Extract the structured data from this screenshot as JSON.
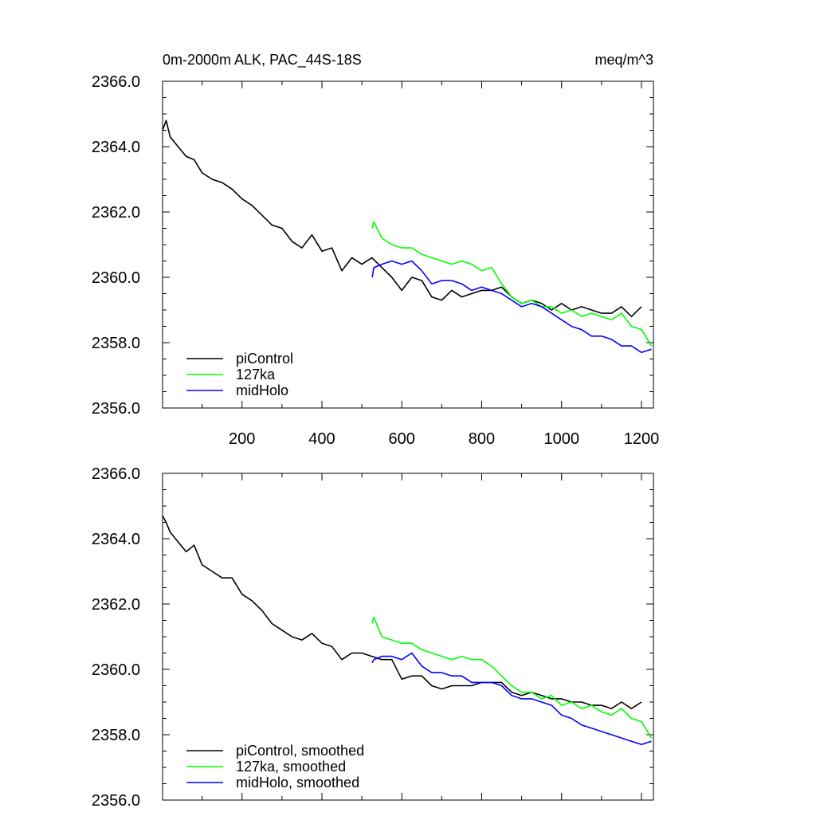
{
  "figure": {
    "title_left": "0m-2000m ALK, PAC_44S-18S",
    "title_right": "meq/m^3"
  },
  "chart_data": [
    {
      "type": "line",
      "title": "0m-2000m ALK, PAC_44S-18S",
      "units": "meq/m^3",
      "xlabel": "",
      "ylabel": "",
      "xlim": [
        1,
        1230
      ],
      "ylim": [
        2356.0,
        2366.0
      ],
      "xticks": [
        200,
        400,
        600,
        800,
        1000,
        1200
      ],
      "xtick_labels": [
        "200",
        "400",
        "600",
        "800",
        "1000",
        "1200"
      ],
      "yticks": [
        2356,
        2358,
        2360,
        2362,
        2364,
        2366
      ],
      "ytick_labels": [
        "2356.0",
        "2358.0",
        "2360.0",
        "2362.0",
        "2364.0",
        "2366.0"
      ],
      "legend_location": "bottom-left",
      "series": [
        {
          "name": "piControl",
          "color": "#000000",
          "x": [
            1,
            10,
            20,
            40,
            60,
            80,
            100,
            125,
            150,
            175,
            200,
            225,
            250,
            275,
            300,
            325,
            350,
            375,
            400,
            425,
            450,
            475,
            500,
            525,
            550,
            575,
            600,
            625,
            650,
            675,
            700,
            725,
            750,
            775,
            800,
            825,
            850,
            875,
            900,
            925,
            950,
            975,
            1000,
            1025,
            1050,
            1075,
            1100,
            1125,
            1150,
            1175,
            1200
          ],
          "y": [
            2364.5,
            2364.8,
            2364.3,
            2364.0,
            2363.7,
            2363.6,
            2363.2,
            2363.0,
            2362.9,
            2362.7,
            2362.4,
            2362.2,
            2361.9,
            2361.6,
            2361.5,
            2361.1,
            2360.9,
            2361.3,
            2360.8,
            2360.9,
            2360.2,
            2360.6,
            2360.4,
            2360.6,
            2360.3,
            2360.0,
            2359.6,
            2360.0,
            2359.9,
            2359.4,
            2359.3,
            2359.6,
            2359.4,
            2359.5,
            2359.6,
            2359.6,
            2359.7,
            2359.4,
            2359.2,
            2359.3,
            2359.2,
            2359.0,
            2359.2,
            2359.0,
            2359.1,
            2359.0,
            2358.9,
            2358.9,
            2359.1,
            2358.8,
            2359.1
          ]
        },
        {
          "name": "127ka",
          "color": "#00ff00",
          "x": [
            526,
            530,
            550,
            575,
            600,
            625,
            650,
            675,
            700,
            725,
            750,
            775,
            800,
            825,
            850,
            875,
            900,
            925,
            950,
            975,
            1000,
            1025,
            1050,
            1075,
            1100,
            1125,
            1150,
            1175,
            1200,
            1225
          ],
          "y": [
            2361.5,
            2361.7,
            2361.2,
            2361.0,
            2360.9,
            2360.9,
            2360.7,
            2360.6,
            2360.5,
            2360.4,
            2360.5,
            2360.4,
            2360.2,
            2360.3,
            2359.8,
            2359.4,
            2359.2,
            2359.3,
            2359.1,
            2359.1,
            2358.9,
            2359.0,
            2358.8,
            2358.9,
            2358.8,
            2358.7,
            2358.9,
            2358.5,
            2358.4,
            2357.9
          ]
        },
        {
          "name": "midHolo",
          "color": "#0000ff",
          "x": [
            526,
            530,
            550,
            575,
            600,
            625,
            650,
            675,
            700,
            725,
            750,
            775,
            800,
            825,
            850,
            875,
            900,
            925,
            950,
            975,
            1000,
            1025,
            1050,
            1075,
            1100,
            1125,
            1150,
            1175,
            1200,
            1225
          ],
          "y": [
            2360.0,
            2360.3,
            2360.4,
            2360.5,
            2360.4,
            2360.5,
            2360.2,
            2359.8,
            2359.9,
            2359.9,
            2359.8,
            2359.6,
            2359.7,
            2359.6,
            2359.5,
            2359.3,
            2359.1,
            2359.2,
            2359.1,
            2358.9,
            2358.7,
            2358.5,
            2358.4,
            2358.2,
            2358.2,
            2358.1,
            2357.9,
            2357.9,
            2357.7,
            2357.8
          ]
        }
      ]
    },
    {
      "type": "line",
      "title": "",
      "units": "meq/m^3",
      "xlabel": "",
      "ylabel": "",
      "xlim": [
        1,
        1230
      ],
      "ylim": [
        2356.0,
        2366.0
      ],
      "xticks": [
        200,
        400,
        600,
        800,
        1000,
        1200
      ],
      "xtick_labels": [],
      "yticks": [
        2356,
        2358,
        2360,
        2362,
        2364,
        2366
      ],
      "ytick_labels": [
        "2356.0",
        "2358.0",
        "2360.0",
        "2362.0",
        "2364.0",
        "2366.0"
      ],
      "legend_location": "bottom-left",
      "series": [
        {
          "name": "piControl, smoothed",
          "color": "#000000",
          "x": [
            1,
            10,
            20,
            40,
            60,
            80,
            100,
            125,
            150,
            175,
            200,
            225,
            250,
            275,
            300,
            325,
            350,
            375,
            400,
            425,
            450,
            475,
            500,
            525,
            550,
            575,
            600,
            625,
            650,
            675,
            700,
            725,
            750,
            775,
            800,
            825,
            850,
            875,
            900,
            925,
            950,
            975,
            1000,
            1025,
            1050,
            1075,
            1100,
            1125,
            1150,
            1175,
            1200
          ],
          "y": [
            2364.7,
            2364.5,
            2364.2,
            2363.9,
            2363.6,
            2363.8,
            2363.2,
            2363.0,
            2362.8,
            2362.8,
            2362.3,
            2362.1,
            2361.8,
            2361.4,
            2361.2,
            2361.0,
            2360.9,
            2361.1,
            2360.8,
            2360.7,
            2360.3,
            2360.5,
            2360.5,
            2360.4,
            2360.3,
            2360.3,
            2359.7,
            2359.8,
            2359.8,
            2359.5,
            2359.4,
            2359.5,
            2359.5,
            2359.5,
            2359.6,
            2359.6,
            2359.6,
            2359.3,
            2359.2,
            2359.3,
            2359.2,
            2359.1,
            2359.1,
            2359.0,
            2359.0,
            2358.9,
            2358.9,
            2358.8,
            2359.0,
            2358.8,
            2359.0
          ]
        },
        {
          "name": "127ka, smoothed",
          "color": "#00ff00",
          "x": [
            526,
            530,
            550,
            575,
            600,
            625,
            650,
            675,
            700,
            725,
            750,
            775,
            800,
            825,
            850,
            875,
            900,
            925,
            950,
            975,
            1000,
            1025,
            1050,
            1075,
            1100,
            1125,
            1150,
            1175,
            1200,
            1225
          ],
          "y": [
            2361.4,
            2361.6,
            2361.0,
            2360.9,
            2360.8,
            2360.8,
            2360.6,
            2360.5,
            2360.4,
            2360.3,
            2360.4,
            2360.3,
            2360.3,
            2360.1,
            2359.8,
            2359.5,
            2359.3,
            2359.3,
            2359.1,
            2359.2,
            2358.9,
            2359.0,
            2358.8,
            2358.9,
            2358.7,
            2358.6,
            2358.8,
            2358.5,
            2358.4,
            2357.9
          ]
        },
        {
          "name": "midHolo, smoothed",
          "color": "#0000ff",
          "x": [
            526,
            530,
            550,
            575,
            600,
            625,
            650,
            675,
            700,
            725,
            750,
            775,
            800,
            825,
            850,
            875,
            900,
            925,
            950,
            975,
            1000,
            1025,
            1050,
            1075,
            1100,
            1125,
            1150,
            1175,
            1200,
            1225
          ],
          "y": [
            2360.2,
            2360.3,
            2360.4,
            2360.4,
            2360.3,
            2360.5,
            2360.1,
            2359.9,
            2359.9,
            2359.8,
            2359.8,
            2359.6,
            2359.6,
            2359.6,
            2359.5,
            2359.2,
            2359.1,
            2359.1,
            2359.0,
            2358.9,
            2358.6,
            2358.5,
            2358.3,
            2358.2,
            2358.1,
            2358.0,
            2357.9,
            2357.8,
            2357.7,
            2357.8
          ]
        }
      ]
    }
  ]
}
